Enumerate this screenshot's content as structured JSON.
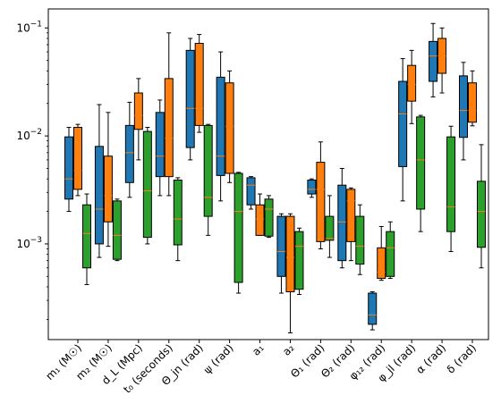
{
  "chart_data": {
    "type": "box",
    "title": "",
    "xlabel": "",
    "ylabel": "",
    "y_scale": "log",
    "ylim": [
      0.00013,
      0.15
    ],
    "y_ticks": [
      {
        "value": 0.001,
        "base": "10",
        "exp": "−3"
      },
      {
        "value": 0.01,
        "base": "10",
        "exp": "−2"
      },
      {
        "value": 0.1,
        "base": "10",
        "exp": "−1"
      }
    ],
    "grid": false,
    "legend": "none",
    "series_colors": [
      "#1f77b4",
      "#ff7f0e",
      "#2ca02c"
    ],
    "median_color": "#ff7f0e",
    "categories": [
      {
        "label": "m₁ (M☉)",
        "boxes": [
          {
            "whislo": 0.002,
            "q1": 0.0026,
            "med": 0.004,
            "q3": 0.0098,
            "whishi": 0.012
          },
          {
            "whislo": 0.0028,
            "q1": 0.0032,
            "med": 0.0048,
            "q3": 0.012,
            "whishi": 0.0128
          },
          {
            "whislo": 0.00042,
            "q1": 0.0006,
            "med": 0.00125,
            "q3": 0.0023,
            "whishi": 0.0029
          }
        ]
      },
      {
        "label": "m₂ (M☉)",
        "boxes": [
          {
            "whislo": 0.00075,
            "q1": 0.001,
            "med": 0.0021,
            "q3": 0.008,
            "whishi": 0.0195
          },
          {
            "whislo": 0.00095,
            "q1": 0.0016,
            "med": 0.0028,
            "q3": 0.0065,
            "whishi": 0.0165
          },
          {
            "whislo": 0.0007,
            "q1": 0.00072,
            "med": 0.0012,
            "q3": 0.0025,
            "whishi": 0.0026
          }
        ]
      },
      {
        "label": "d_L (Mpc)",
        "boxes": [
          {
            "whislo": 0.0027,
            "q1": 0.0037,
            "med": 0.007,
            "q3": 0.0125,
            "whishi": 0.0205
          },
          {
            "whislo": 0.006,
            "q1": 0.0115,
            "med": 0.0155,
            "q3": 0.025,
            "whishi": 0.034
          },
          {
            "whislo": 0.001,
            "q1": 0.00115,
            "med": 0.0031,
            "q3": 0.011,
            "whishi": 0.012
          }
        ]
      },
      {
        "label": "t₀ (seconds)",
        "boxes": [
          {
            "whislo": 0.0028,
            "q1": 0.0042,
            "med": 0.0065,
            "q3": 0.0165,
            "whishi": 0.0215
          },
          {
            "whislo": 0.0028,
            "q1": 0.0042,
            "med": 0.0095,
            "q3": 0.034,
            "whishi": 0.09
          },
          {
            "whislo": 0.0007,
            "q1": 0.00098,
            "med": 0.0017,
            "q3": 0.0039,
            "whishi": 0.0041
          }
        ]
      },
      {
        "label": "Θ_jn (rad)",
        "boxes": [
          {
            "whislo": 0.006,
            "q1": 0.0078,
            "med": 0.018,
            "q3": 0.062,
            "whishi": 0.08
          },
          {
            "whislo": 0.0108,
            "q1": 0.0125,
            "med": 0.018,
            "q3": 0.072,
            "whishi": 0.087
          },
          {
            "whislo": 0.0012,
            "q1": 0.0018,
            "med": 0.0027,
            "q3": 0.0125,
            "whishi": 0.0128
          }
        ]
      },
      {
        "label": "ψ (rad)",
        "boxes": [
          {
            "whislo": 0.0025,
            "q1": 0.0043,
            "med": 0.0065,
            "q3": 0.035,
            "whishi": 0.06
          },
          {
            "whislo": 0.0037,
            "q1": 0.0045,
            "med": 0.0123,
            "q3": 0.031,
            "whishi": 0.04
          },
          {
            "whislo": 0.00035,
            "q1": 0.00044,
            "med": 0.002,
            "q3": 0.0045,
            "whishi": 0.0046
          }
        ]
      },
      {
        "label": "a₁",
        "boxes": [
          {
            "whislo": 0.0021,
            "q1": 0.0023,
            "med": 0.0035,
            "q3": 0.0041,
            "whishi": 0.0042
          },
          {
            "whislo": 0.0012,
            "q1": 0.0012,
            "med": 0.0017,
            "q3": 0.0023,
            "whishi": 0.0029
          },
          {
            "whislo": 0.00115,
            "q1": 0.00118,
            "med": 0.0021,
            "q3": 0.0026,
            "whishi": 0.0028
          }
        ]
      },
      {
        "label": "a₂",
        "boxes": [
          {
            "whislo": 0.00035,
            "q1": 0.0005,
            "med": 0.00085,
            "q3": 0.0018,
            "whishi": 0.0019
          },
          {
            "whislo": 0.00015,
            "q1": 0.00036,
            "med": 0.00075,
            "q3": 0.0018,
            "whishi": 0.0019
          },
          {
            "whislo": 0.00034,
            "q1": 0.00038,
            "med": 0.00095,
            "q3": 0.0013,
            "whishi": 0.0014
          }
        ]
      },
      {
        "label": "Θ₁ (rad)",
        "boxes": [
          {
            "whislo": 0.0027,
            "q1": 0.0029,
            "med": 0.0032,
            "q3": 0.0039,
            "whishi": 0.004
          },
          {
            "whislo": 0.0009,
            "q1": 0.00105,
            "med": 0.0032,
            "q3": 0.0057,
            "whishi": 0.0088
          },
          {
            "whislo": 0.00075,
            "q1": 0.00108,
            "med": 0.00112,
            "q3": 0.0018,
            "whishi": 0.0028
          }
        ]
      },
      {
        "label": "Θ₂ (rad)",
        "boxes": [
          {
            "whislo": 0.0006,
            "q1": 0.0007,
            "med": 0.0016,
            "q3": 0.0035,
            "whishi": 0.005
          },
          {
            "whislo": 0.0007,
            "q1": 0.00105,
            "med": 0.0025,
            "q3": 0.0032,
            "whishi": 0.0033
          },
          {
            "whislo": 0.00052,
            "q1": 0.00065,
            "med": 0.00095,
            "q3": 0.0018,
            "whishi": 0.0023
          }
        ]
      },
      {
        "label": "φ₁₂ (rad)",
        "boxes": [
          {
            "whislo": 0.00016,
            "q1": 0.00018,
            "med": 0.00022,
            "q3": 0.00035,
            "whishi": 0.00036
          },
          {
            "whislo": 0.00046,
            "q1": 0.00048,
            "med": 0.00055,
            "q3": 0.00092,
            "whishi": 0.00145
          },
          {
            "whislo": 0.00048,
            "q1": 0.0005,
            "med": 0.00092,
            "q3": 0.0013,
            "whishi": 0.0016
          }
        ]
      },
      {
        "label": "φ_jl (rad)",
        "boxes": [
          {
            "whislo": 0.0025,
            "q1": 0.0052,
            "med": 0.016,
            "q3": 0.032,
            "whishi": 0.052
          },
          {
            "whislo": 0.013,
            "q1": 0.021,
            "med": 0.03,
            "q3": 0.045,
            "whishi": 0.062
          },
          {
            "whislo": 0.0013,
            "q1": 0.0021,
            "med": 0.006,
            "q3": 0.015,
            "whishi": 0.0155
          }
        ]
      },
      {
        "label": "α (rad)",
        "boxes": [
          {
            "whislo": 0.023,
            "q1": 0.032,
            "med": 0.055,
            "q3": 0.075,
            "whishi": 0.11
          },
          {
            "whislo": 0.025,
            "q1": 0.038,
            "med": 0.055,
            "q3": 0.08,
            "whishi": 0.1
          },
          {
            "whislo": 0.00085,
            "q1": 0.0013,
            "med": 0.0022,
            "q3": 0.0098,
            "whishi": 0.0123
          }
        ]
      },
      {
        "label": "δ (rad)",
        "boxes": [
          {
            "whislo": 0.006,
            "q1": 0.0097,
            "med": 0.0172,
            "q3": 0.036,
            "whishi": 0.048
          },
          {
            "whislo": 0.0124,
            "q1": 0.0134,
            "med": 0.0172,
            "q3": 0.031,
            "whishi": 0.04
          },
          {
            "whislo": 0.0006,
            "q1": 0.00093,
            "med": 0.002,
            "q3": 0.0038,
            "whishi": 0.0083
          }
        ]
      }
    ]
  }
}
